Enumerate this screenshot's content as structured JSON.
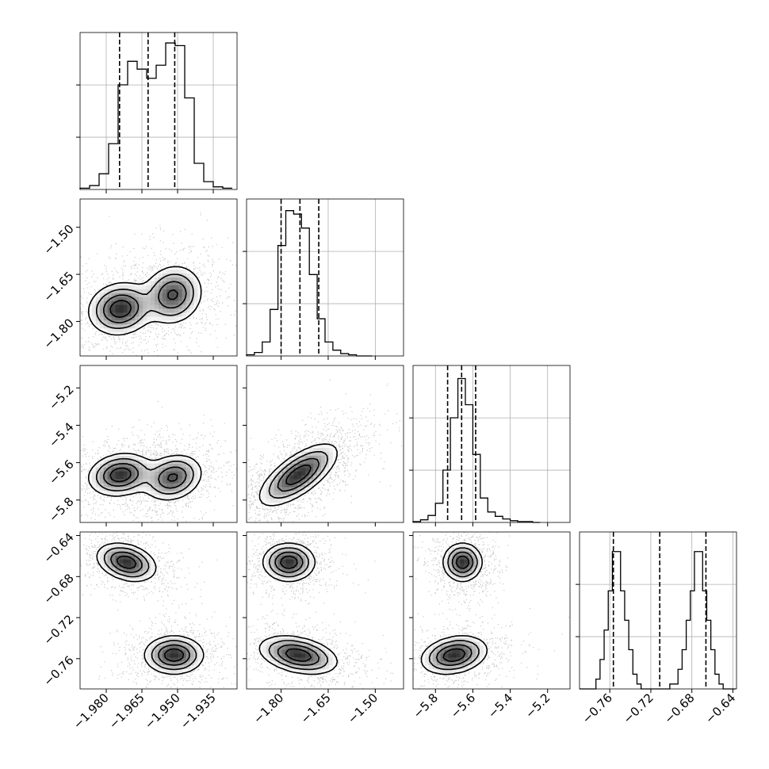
{
  "chart_data": {
    "type": "corner",
    "colors": {
      "line": "#000000",
      "grid": "#b0b0b0",
      "density_dark": "#000000",
      "scatter": "#888888"
    },
    "params": [
      {
        "ylim": [
          -1.991,
          -1.925
        ],
        "ticks": [
          -1.98,
          -1.965,
          -1.95,
          -1.935
        ],
        "tick_labels": [
          "−1.980",
          "−1.965",
          "−1.950",
          "−1.935"
        ]
      },
      {
        "lim": [
          -1.91,
          -1.41
        ],
        "ticks": [
          -1.8,
          -1.65,
          -1.5
        ],
        "tick_labels": [
          "−1.80",
          "−1.65",
          "−1.50"
        ]
      },
      {
        "lim": [
          -5.92,
          -5.08
        ],
        "ticks": [
          -5.8,
          -5.6,
          -5.4,
          -5.2
        ],
        "tick_labels": [
          "−5.8",
          "−5.6",
          "−5.4",
          "−5.2"
        ]
      },
      {
        "lim": [
          -0.7895,
          -0.6365
        ],
        "ticks": [
          -0.76,
          -0.72,
          -0.68,
          -0.64
        ],
        "tick_labels": [
          "−0.76",
          "−0.72",
          "−0.68",
          "−0.64"
        ]
      }
    ],
    "histograms": [
      {
        "bins": [
          -1.991,
          -1.987,
          -1.983,
          -1.979,
          -1.975,
          -1.971,
          -1.967,
          -1.963,
          -1.959,
          -1.955,
          -1.951,
          -1.947,
          -1.943,
          -1.939,
          -1.935,
          -1.931,
          -1.927
        ],
        "counts": [
          1,
          3,
          12,
          35,
          80,
          98,
          92,
          85,
          95,
          112,
          110,
          70,
          20,
          6,
          2,
          1
        ],
        "ymax": 120,
        "quantiles": [
          -1.9744,
          -1.9624,
          -1.9512
        ]
      },
      {
        "bins": [
          -1.91,
          -1.885,
          -1.86,
          -1.835,
          -1.81,
          -1.785,
          -1.76,
          -1.735,
          -1.71,
          -1.685,
          -1.66,
          -1.635,
          -1.61,
          -1.585,
          -1.56,
          -1.535,
          -1.51
        ],
        "counts": [
          1,
          3,
          12,
          40,
          95,
          125,
          122,
          110,
          70,
          32,
          12,
          5,
          2,
          1,
          0,
          0
        ],
        "ymax": 135,
        "quantiles": [
          -1.8,
          -1.74,
          -1.68
        ]
      },
      {
        "bins": [
          -5.92,
          -5.88,
          -5.84,
          -5.8,
          -5.76,
          -5.72,
          -5.68,
          -5.64,
          -5.6,
          -5.56,
          -5.52,
          -5.48,
          -5.44,
          -5.4,
          -5.36,
          -5.32,
          -5.28,
          -5.24
        ],
        "counts": [
          1,
          3,
          8,
          22,
          60,
          120,
          165,
          135,
          78,
          28,
          12,
          7,
          4,
          2,
          1,
          1,
          0
        ],
        "ymax": 180,
        "quantiles": [
          -5.735,
          -5.66,
          -5.585
        ]
      },
      {
        "bins": [
          -0.7895,
          -0.7855,
          -0.7815,
          -0.7775,
          -0.7735,
          -0.7695,
          -0.7655,
          -0.7615,
          -0.7575,
          -0.7535,
          -0.7495,
          -0.7455,
          -0.7415,
          -0.7375,
          -0.7335,
          -0.7295,
          -0.7255,
          -0.7215,
          -0.7175,
          -0.7135,
          -0.7095,
          -0.7055,
          -0.7015,
          -0.6975,
          -0.6935,
          -0.6895,
          -0.6855,
          -0.6815,
          -0.6775,
          -0.6735,
          -0.6695,
          -0.6655,
          -0.6615,
          -0.6575,
          -0.6535,
          -0.6495,
          -0.6455,
          -0.6415,
          -0.6375
        ],
        "counts": [
          0,
          0,
          0,
          0,
          2,
          6,
          12,
          20,
          28,
          28,
          20,
          14,
          8,
          3,
          1,
          0,
          0,
          0,
          0,
          0,
          0,
          0,
          1,
          1,
          4,
          8,
          14,
          20,
          28,
          28,
          20,
          14,
          8,
          3,
          1,
          0,
          0,
          0
        ],
        "ymax": 32,
        "quantiles": [
          -0.7565,
          -0.7113,
          -0.6663
        ]
      }
    ],
    "pairs": [
      {
        "row": 1,
        "col": 0,
        "modes": [
          {
            "x": -1.974,
            "y": -1.76,
            "sx": 0.0065,
            "sy": 0.04,
            "rho": 0.1,
            "w": 1
          },
          {
            "x": -1.952,
            "y": -1.715,
            "sx": 0.006,
            "sy": 0.045,
            "rho": 0.1,
            "w": 0.85
          }
        ]
      },
      {
        "row": 2,
        "col": 0,
        "modes": [
          {
            "x": -1.974,
            "y": -5.665,
            "sx": 0.0065,
            "sy": 0.055,
            "rho": 0.15,
            "w": 1
          },
          {
            "x": -1.952,
            "y": -5.68,
            "sx": 0.006,
            "sy": 0.06,
            "rho": 0.2,
            "w": 0.85
          }
        ]
      },
      {
        "row": 2,
        "col": 1,
        "modes": [
          {
            "x": -1.745,
            "y": -5.665,
            "sx": 0.06,
            "sy": 0.08,
            "rho": 0.7,
            "w": 1
          }
        ]
      },
      {
        "row": 3,
        "col": 0,
        "modes": [
          {
            "x": -1.9715,
            "y": -0.666,
            "sx": 0.006,
            "sy": 0.009,
            "rho": -0.3,
            "w": 1
          },
          {
            "x": -1.9515,
            "y": -0.7565,
            "sx": 0.006,
            "sy": 0.009,
            "rho": 0.0,
            "w": 1
          }
        ]
      },
      {
        "row": 3,
        "col": 1,
        "modes": [
          {
            "x": -1.775,
            "y": -0.666,
            "sx": 0.04,
            "sy": 0.009,
            "rho": 0.0,
            "w": 1
          },
          {
            "x": -1.745,
            "y": -0.7565,
            "sx": 0.06,
            "sy": 0.009,
            "rho": -0.35,
            "w": 1
          }
        ]
      },
      {
        "row": 3,
        "col": 2,
        "modes": [
          {
            "x": -5.655,
            "y": -0.666,
            "sx": 0.05,
            "sy": 0.009,
            "rho": 0.0,
            "w": 1
          },
          {
            "x": -5.7,
            "y": -0.7565,
            "sx": 0.085,
            "sy": 0.009,
            "rho": 0.25,
            "w": 1
          }
        ]
      }
    ]
  }
}
